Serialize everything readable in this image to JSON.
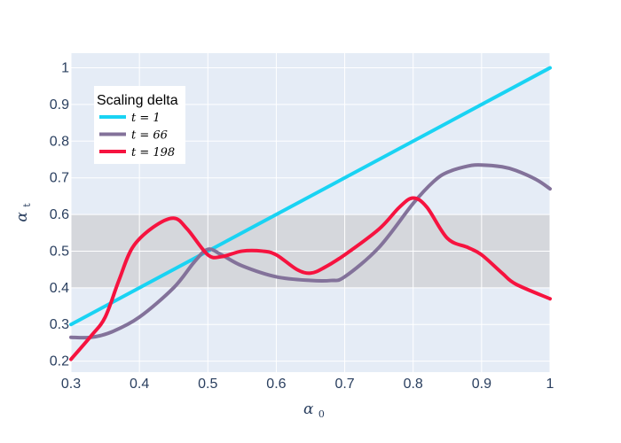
{
  "chart_data": {
    "type": "line",
    "title": "",
    "xlabel": "α0",
    "ylabel": "αt",
    "xlim": [
      0.3,
      1.0
    ],
    "ylim": [
      0.17,
      1.04
    ],
    "x_ticks": [
      0.3,
      0.4,
      0.5,
      0.6,
      0.7,
      0.8,
      0.9,
      1.0
    ],
    "x_tick_labels": [
      "0.3",
      "0.4",
      "0.5",
      "0.6",
      "0.7",
      "0.8",
      "0.9",
      "1"
    ],
    "y_ticks": [
      0.2,
      0.3,
      0.4,
      0.5,
      0.6,
      0.7,
      0.8,
      0.9,
      1.0
    ],
    "y_tick_labels": [
      "0.2",
      "0.3",
      "0.4",
      "0.5",
      "0.6",
      "0.7",
      "0.8",
      "0.9",
      "1"
    ],
    "grid": true,
    "shaded_band": {
      "y0": 0.4,
      "y1": 0.6,
      "color": "#d5d7dc"
    },
    "legend": {
      "title": "Scaling delta",
      "placement": "top-left"
    },
    "series": [
      {
        "name": "t = 1",
        "t_label": "t = 1",
        "color": "#19d3f3",
        "x": [
          0.3,
          1.0
        ],
        "y": [
          0.3,
          1.0
        ]
      },
      {
        "name": "t = 66",
        "t_label": "t = 66",
        "color": "#83729a",
        "x": [
          0.3,
          0.33,
          0.36,
          0.4,
          0.45,
          0.48,
          0.5,
          0.52,
          0.55,
          0.6,
          0.65,
          0.68,
          0.7,
          0.75,
          0.8,
          0.83,
          0.85,
          0.88,
          0.9,
          0.93,
          0.95,
          0.98,
          1.0
        ],
        "y": [
          0.265,
          0.265,
          0.28,
          0.32,
          0.4,
          0.47,
          0.505,
          0.49,
          0.46,
          0.43,
          0.42,
          0.42,
          0.43,
          0.51,
          0.63,
          0.69,
          0.715,
          0.732,
          0.735,
          0.73,
          0.72,
          0.695,
          0.67
        ]
      },
      {
        "name": "t = 198",
        "t_label": "t = 198",
        "color": "#f6133f",
        "x": [
          0.3,
          0.33,
          0.35,
          0.37,
          0.39,
          0.42,
          0.45,
          0.47,
          0.5,
          0.52,
          0.55,
          0.58,
          0.6,
          0.63,
          0.65,
          0.67,
          0.7,
          0.75,
          0.78,
          0.8,
          0.82,
          0.85,
          0.88,
          0.9,
          0.93,
          0.95,
          1.0
        ],
        "y": [
          0.205,
          0.27,
          0.32,
          0.42,
          0.51,
          0.565,
          0.59,
          0.56,
          0.49,
          0.485,
          0.5,
          0.5,
          0.49,
          0.45,
          0.44,
          0.455,
          0.49,
          0.56,
          0.62,
          0.645,
          0.62,
          0.535,
          0.51,
          0.49,
          0.44,
          0.41,
          0.37
        ]
      }
    ]
  }
}
